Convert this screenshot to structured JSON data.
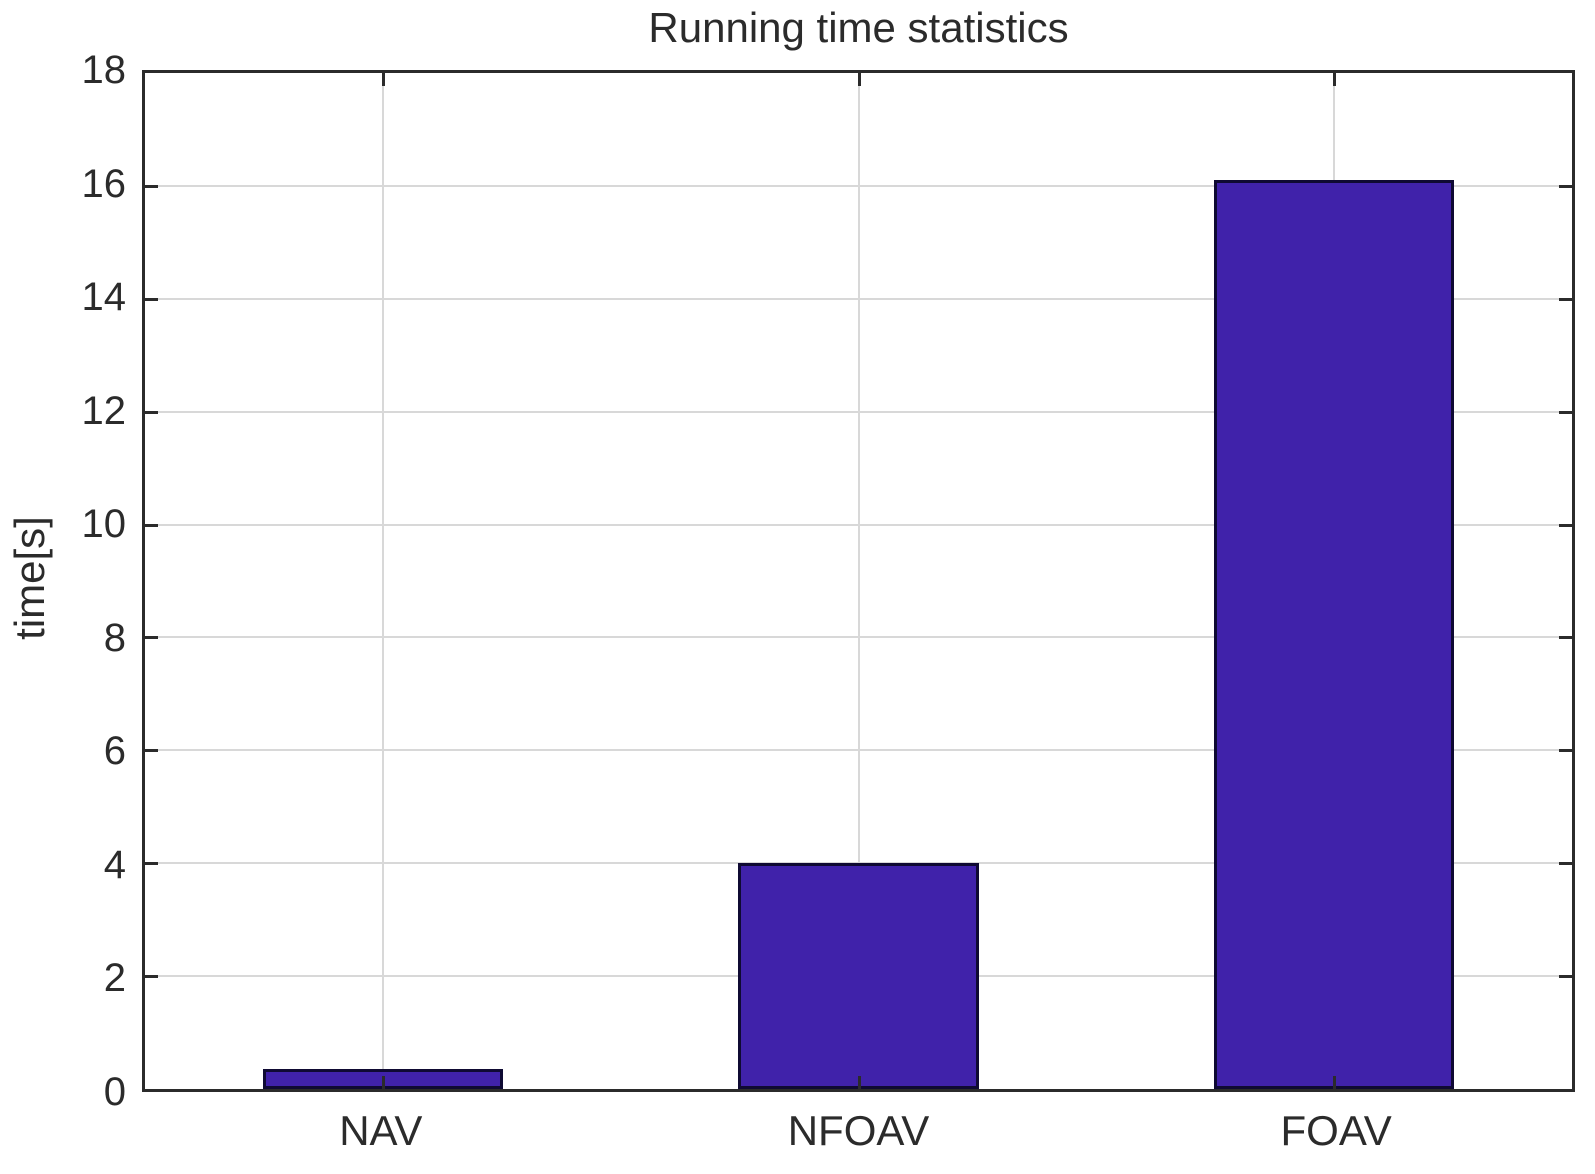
{
  "chart_data": {
    "type": "bar",
    "title": "Running time statistics",
    "xlabel": "",
    "ylabel": "time[s]",
    "categories": [
      "NAV",
      "NFOAV",
      "FOAV"
    ],
    "values": [
      0.35,
      4.0,
      16.1
    ],
    "ylim": [
      0,
      18
    ],
    "yticks": [
      0,
      2,
      4,
      6,
      8,
      10,
      12,
      14,
      16,
      18
    ],
    "grid": true,
    "legend_position": "none",
    "bar_width_fraction": 0.505,
    "colors": {
      "bar_fill": "#4022AA",
      "bar_edge": "#0F0A33",
      "axis": "#2B2B2B",
      "grid": "#D8D8D8",
      "text": "#2B2B2B",
      "background": "#FFFFFF"
    }
  }
}
